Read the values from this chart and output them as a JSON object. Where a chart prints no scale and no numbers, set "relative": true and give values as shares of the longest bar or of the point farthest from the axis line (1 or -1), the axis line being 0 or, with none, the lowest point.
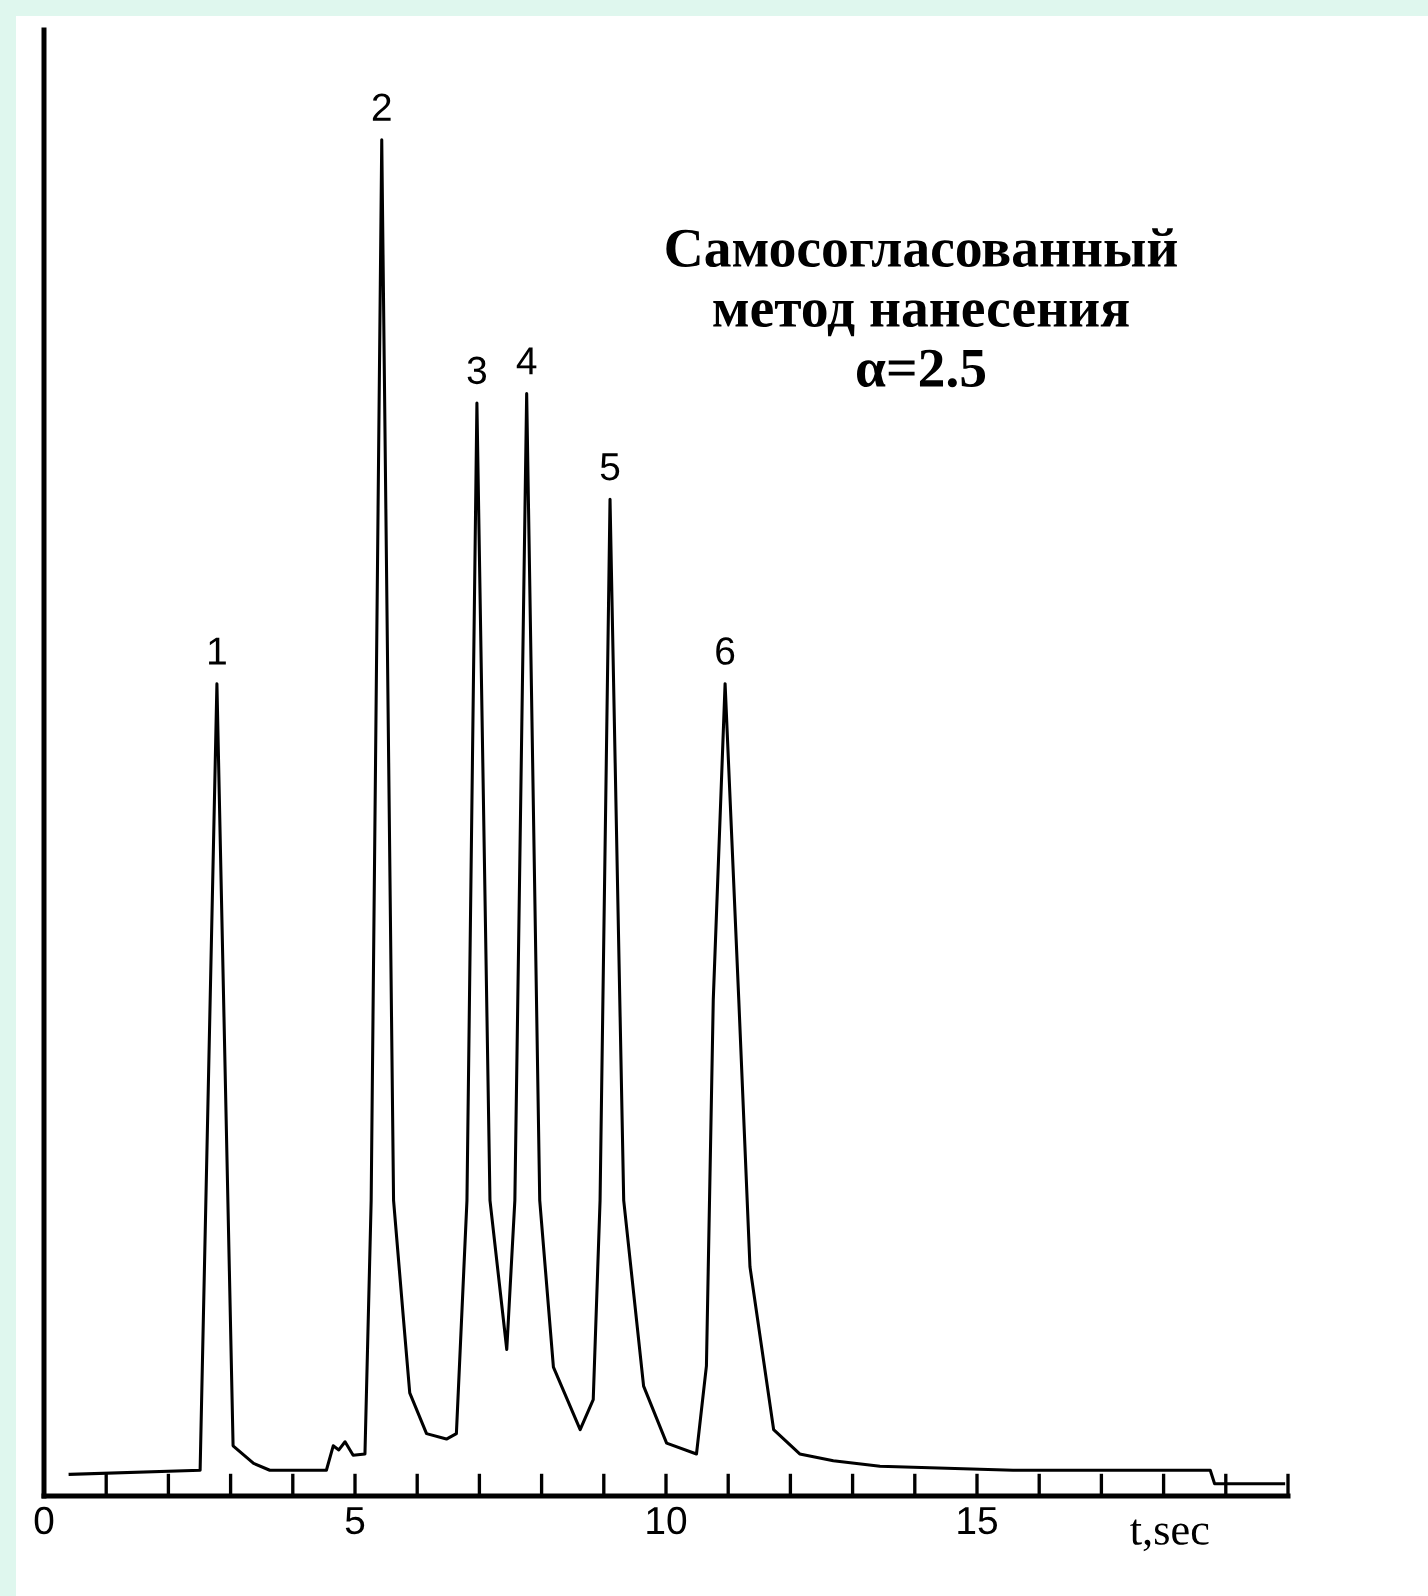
{
  "chart_data": {
    "type": "line",
    "relative": true,
    "xlabel": "t,sec",
    "color": "#000000",
    "x": [
      0.42,
      2.51,
      2.78,
      3.04,
      3.37,
      3.63,
      4.54,
      4.65,
      4.74,
      4.84,
      4.97,
      5.16,
      5.26,
      5.43,
      5.62,
      5.78,
      5.88,
      6.15,
      6.47,
      6.63,
      6.8,
      6.96,
      7.17,
      7.44,
      7.57,
      7.76,
      7.97,
      8.19,
      8.62,
      8.83,
      8.94,
      9.1,
      9.32,
      9.64,
      10.01,
      10.49,
      10.65,
      10.76,
      10.95,
      11.17,
      11.35,
      11.73,
      12.15,
      12.69,
      13.44,
      15.58,
      18.75,
      18.82,
      19.93
    ],
    "values": [
      0.016,
      0.019,
      0.599,
      0.037,
      0.024,
      0.019,
      0.019,
      0.037,
      0.034,
      0.04,
      0.03,
      0.031,
      0.218,
      1.0,
      0.218,
      0.13,
      0.076,
      0.046,
      0.042,
      0.046,
      0.218,
      0.806,
      0.218,
      0.108,
      0.218,
      0.813,
      0.218,
      0.095,
      0.049,
      0.071,
      0.218,
      0.735,
      0.218,
      0.081,
      0.039,
      0.031,
      0.096,
      0.366,
      0.599,
      0.366,
      0.169,
      0.049,
      0.031,
      0.026,
      0.022,
      0.019,
      0.019,
      0.009,
      0.009
    ],
    "xlim": [
      0,
      20
    ],
    "xticks": [
      0,
      {
        "value": 1,
        "label": null
      },
      {
        "value": 2,
        "label": null
      },
      {
        "value": 3,
        "label": null
      },
      {
        "value": 4,
        "label": null
      },
      5,
      {
        "value": 6,
        "label": null
      },
      {
        "value": 7,
        "label": null
      },
      {
        "value": 8,
        "label": null
      },
      {
        "value": 9,
        "label": null
      },
      10,
      {
        "value": 11,
        "label": null
      },
      {
        "value": 12,
        "label": null
      },
      {
        "value": 13,
        "label": null
      },
      {
        "value": 14,
        "label": null
      },
      15,
      {
        "value": 16,
        "label": null
      },
      {
        "value": 17,
        "label": null
      },
      {
        "value": 18,
        "label": null
      },
      {
        "value": 19,
        "label": null
      },
      {
        "value": 20,
        "label": null
      }
    ],
    "tick_labels": "x",
    "grid": false,
    "legend": false,
    "marker": "none",
    "line_style": "solid",
    "annotations": [
      {
        "text": "1",
        "x": 2.78,
        "y": 0.599
      },
      {
        "text": "2",
        "x": 5.43,
        "y": 1.0
      },
      {
        "text": "3",
        "x": 6.96,
        "y": 0.806
      },
      {
        "text": "4",
        "x": 7.76,
        "y": 0.813
      },
      {
        "text": "5",
        "x": 9.1,
        "y": 0.735
      },
      {
        "text": "6",
        "x": 10.95,
        "y": 0.599
      },
      "Самосогласованный\nметод нанесения\nα=2.5"
    ]
  }
}
